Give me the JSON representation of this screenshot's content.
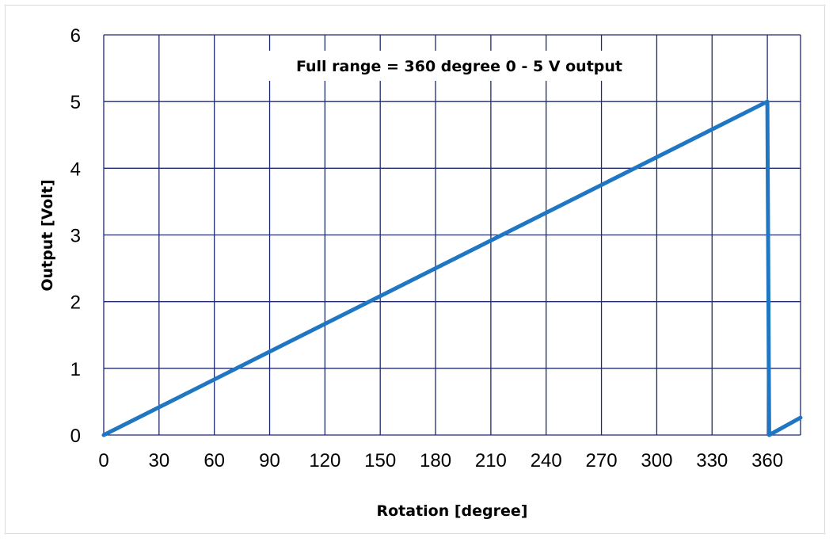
{
  "chart_data": {
    "type": "line",
    "title": "",
    "annotation": "Full range = 360 degree   0 - 5 V output",
    "xlabel": "Rotation [degree]",
    "ylabel": "Output [Volt]",
    "xlim": [
      0,
      378
    ],
    "ylim": [
      0,
      6
    ],
    "x_ticks": [
      "0",
      "30",
      "60",
      "90",
      "120",
      "150",
      "180",
      "210",
      "240",
      "270",
      "300",
      "330",
      "360"
    ],
    "y_ticks": [
      "0",
      "1",
      "2",
      "3",
      "4",
      "5",
      "6"
    ],
    "grid": true,
    "legend": "none",
    "series": [
      {
        "x": [
          0,
          360,
          361,
          378
        ],
        "y": [
          0,
          5,
          0,
          0.26
        ],
        "color": "#1f77c4"
      }
    ],
    "colors": {
      "grid": "#1f2a6b",
      "line": "#1f77c4"
    }
  }
}
